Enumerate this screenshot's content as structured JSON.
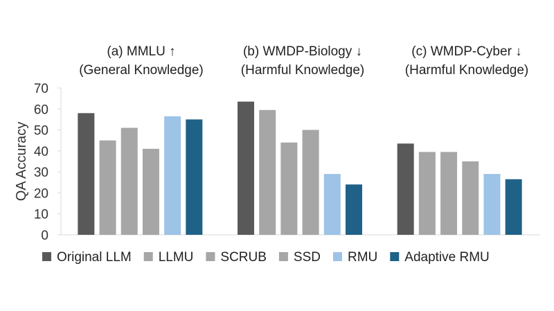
{
  "chart_data": {
    "type": "bar",
    "ylabel": "QA Accuracy",
    "ylim": [
      0,
      70
    ],
    "yticks": [
      0,
      10,
      20,
      30,
      40,
      50,
      60,
      70
    ],
    "grid": false,
    "legend_position": "bottom",
    "groups": [
      {
        "title_line1": "(a) MMLU ↑",
        "title_line2": "(General Knowledge)"
      },
      {
        "title_line1": "(b) WMDP-Biology ↓",
        "title_line2": "(Harmful Knowledge)"
      },
      {
        "title_line1": "(c) WMDP-Cyber ↓",
        "title_line2": "(Harmful Knowledge)"
      }
    ],
    "series": [
      {
        "name": "Original LLM",
        "color": "#595959",
        "values": [
          58,
          63.5,
          43.5
        ]
      },
      {
        "name": "LLMU",
        "color": "#a6a6a6",
        "values": [
          45,
          59.5,
          39.5
        ]
      },
      {
        "name": "SCRUB",
        "color": "#a6a6a6",
        "values": [
          51,
          44,
          39.5
        ]
      },
      {
        "name": "SSD",
        "color": "#a6a6a6",
        "values": [
          41,
          50,
          35
        ]
      },
      {
        "name": "RMU",
        "color": "#9dc3e6",
        "values": [
          56.5,
          29,
          29
        ]
      },
      {
        "name": "Adaptive RMU",
        "color": "#1f6187",
        "values": [
          55,
          24,
          26.5
        ]
      }
    ]
  }
}
